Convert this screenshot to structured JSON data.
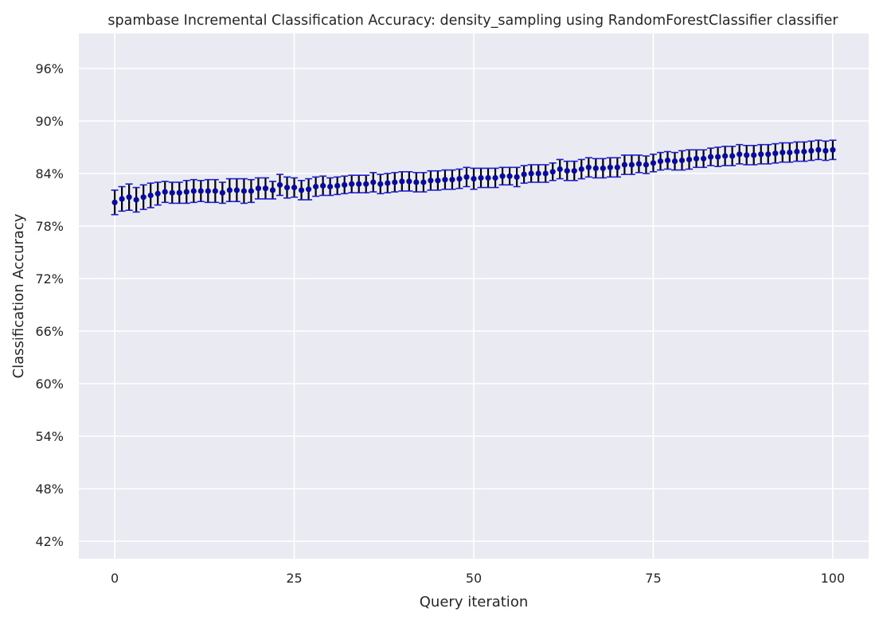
{
  "chart_data": {
    "type": "scatter",
    "title": "spambase Incremental Classification Accuracy: density_sampling using RandomForestClassifier classifier",
    "xlabel": "Query iteration",
    "ylabel": "Classification Accuracy",
    "xlim": [
      -5,
      105
    ],
    "ylim": [
      0.4,
      1.0
    ],
    "x_ticks": [
      0,
      25,
      50,
      75,
      100
    ],
    "y_ticks": [
      0.42,
      0.48,
      0.54,
      0.6,
      0.66,
      0.72,
      0.78,
      0.84,
      0.9,
      0.96
    ],
    "y_tick_labels": [
      "42%",
      "48%",
      "54%",
      "60%",
      "66%",
      "72%",
      "78%",
      "84%",
      "90%",
      "96%"
    ],
    "grid": true,
    "colors": {
      "background": "#eaeaf2",
      "grid": "#ffffff",
      "marker": "#0a0aa0",
      "errorbar": "#000000",
      "cap": "#1a1ad0"
    },
    "series": [
      {
        "x": [
          0,
          1,
          2,
          3,
          4,
          5,
          6,
          7,
          8,
          9,
          10,
          11,
          12,
          13,
          14,
          15,
          16,
          17,
          18,
          19,
          20,
          21,
          22,
          23,
          24,
          25,
          26,
          27,
          28,
          29,
          30,
          31,
          32,
          33,
          34,
          35,
          36,
          37,
          38,
          39,
          40,
          41,
          42,
          43,
          44,
          45,
          46,
          47,
          48,
          49,
          50,
          51,
          52,
          53,
          54,
          55,
          56,
          57,
          58,
          59,
          60,
          61,
          62,
          63,
          64,
          65,
          66,
          67,
          68,
          69,
          70,
          71,
          72,
          73,
          74,
          75,
          76,
          77,
          78,
          79,
          80,
          81,
          82,
          83,
          84,
          85,
          86,
          87,
          88,
          89,
          90,
          91,
          92,
          93,
          94,
          95,
          96,
          97,
          98,
          99,
          100
        ],
        "mean": [
          0.807,
          0.811,
          0.813,
          0.81,
          0.813,
          0.815,
          0.817,
          0.819,
          0.818,
          0.818,
          0.819,
          0.82,
          0.82,
          0.82,
          0.82,
          0.818,
          0.821,
          0.821,
          0.82,
          0.82,
          0.823,
          0.823,
          0.821,
          0.827,
          0.824,
          0.824,
          0.821,
          0.822,
          0.825,
          0.826,
          0.825,
          0.826,
          0.827,
          0.828,
          0.828,
          0.828,
          0.83,
          0.828,
          0.829,
          0.83,
          0.831,
          0.831,
          0.83,
          0.83,
          0.832,
          0.832,
          0.833,
          0.833,
          0.834,
          0.836,
          0.834,
          0.835,
          0.835,
          0.835,
          0.837,
          0.837,
          0.836,
          0.839,
          0.84,
          0.84,
          0.84,
          0.842,
          0.845,
          0.843,
          0.843,
          0.845,
          0.847,
          0.846,
          0.846,
          0.847,
          0.847,
          0.85,
          0.85,
          0.851,
          0.85,
          0.852,
          0.854,
          0.855,
          0.854,
          0.855,
          0.856,
          0.857,
          0.857,
          0.859,
          0.859,
          0.86,
          0.86,
          0.862,
          0.861,
          0.861,
          0.862,
          0.862,
          0.863,
          0.864,
          0.864,
          0.865,
          0.865,
          0.866,
          0.867,
          0.866,
          0.867
        ],
        "err": [
          0.014,
          0.014,
          0.015,
          0.014,
          0.014,
          0.014,
          0.013,
          0.012,
          0.012,
          0.012,
          0.013,
          0.013,
          0.012,
          0.013,
          0.013,
          0.012,
          0.013,
          0.013,
          0.014,
          0.013,
          0.012,
          0.012,
          0.01,
          0.012,
          0.012,
          0.011,
          0.011,
          0.012,
          0.011,
          0.011,
          0.01,
          0.01,
          0.01,
          0.01,
          0.01,
          0.01,
          0.011,
          0.011,
          0.011,
          0.011,
          0.011,
          0.011,
          0.011,
          0.011,
          0.011,
          0.011,
          0.011,
          0.011,
          0.011,
          0.011,
          0.012,
          0.011,
          0.011,
          0.011,
          0.01,
          0.01,
          0.011,
          0.01,
          0.01,
          0.01,
          0.01,
          0.01,
          0.011,
          0.011,
          0.011,
          0.011,
          0.011,
          0.011,
          0.011,
          0.011,
          0.011,
          0.011,
          0.011,
          0.01,
          0.01,
          0.01,
          0.01,
          0.01,
          0.01,
          0.011,
          0.011,
          0.01,
          0.01,
          0.01,
          0.011,
          0.011,
          0.011,
          0.011,
          0.011,
          0.011,
          0.011,
          0.011,
          0.011,
          0.011,
          0.011,
          0.011,
          0.011,
          0.011,
          0.011,
          0.011,
          0.011
        ]
      }
    ]
  }
}
